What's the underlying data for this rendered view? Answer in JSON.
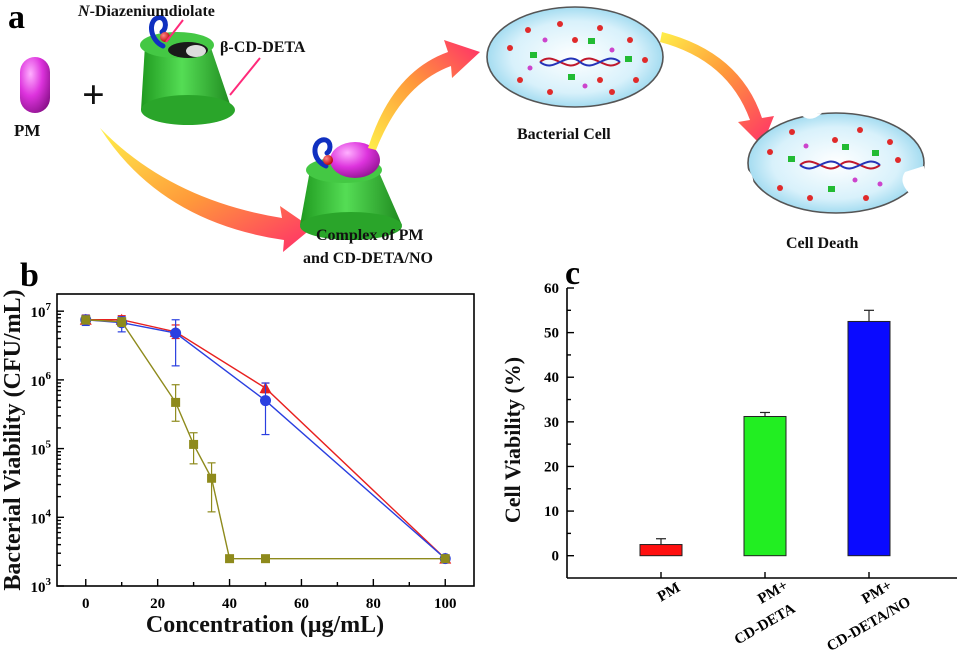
{
  "panel_a": {
    "panel_label": "a",
    "pm_label": "PM",
    "diazen_prefix": "N",
    "diazen_label": "-Diazeniumdiolate",
    "cd_label": "β-CD-DETA",
    "complex_line1": "Complex of PM",
    "complex_line2": "and CD-DETA/NO",
    "cell_label": "Bacterial Cell",
    "death_label": "Cell Death",
    "plus_sign": "+",
    "colors": {
      "pm": "#cc22cc",
      "cd": "#33bb33",
      "arrow": "#ff3355",
      "cell": "#bfe6f5"
    }
  },
  "chart_data": [
    {
      "panel_label": "b",
      "type": "line",
      "xlabel": "Concentration (μg/mL)",
      "ylabel": "Bacterial Viability (CFU/mL)",
      "xlim": [
        -8,
        108
      ],
      "ylim_log10": [
        3,
        7.25
      ],
      "y_scale": "log",
      "x_ticks": [
        0,
        20,
        40,
        60,
        80,
        100
      ],
      "y_tick_bases": [
        "10",
        "10",
        "10",
        "10",
        "10"
      ],
      "y_tick_exps": [
        "3",
        "4",
        "5",
        "6",
        "7"
      ],
      "y_tick_values": [
        1000,
        10000,
        100000,
        1000000,
        10000000
      ],
      "series": [
        {
          "marker": "triangle",
          "color": "#e8201f",
          "x": [
            0,
            10,
            25,
            50,
            100
          ],
          "y": [
            7500000,
            7500000,
            5000000,
            760000,
            2500
          ],
          "err_hi": [
            8800000,
            8600000,
            6300000,
            900000,
            2800
          ],
          "err_lo": [
            6500000,
            6300000,
            4000000,
            650000,
            2300
          ]
        },
        {
          "marker": "circle",
          "color": "#2a3fe0",
          "x": [
            0,
            10,
            25,
            50,
            100
          ],
          "y": [
            7500000,
            6800000,
            4800000,
            500000,
            2500
          ],
          "err_hi": [
            8700000,
            8300000,
            7500000,
            900000,
            2800
          ],
          "err_lo": [
            6200000,
            5000000,
            1600000,
            160000,
            2300
          ]
        },
        {
          "marker": "square",
          "color": "#8e8a1c",
          "x": [
            0,
            10,
            25,
            30,
            35,
            40,
            50,
            100
          ],
          "y": [
            7500000,
            7000000,
            470000,
            115000,
            37000,
            2500,
            2500,
            2500
          ],
          "err_hi": [
            8500000,
            8000000,
            850000,
            170000,
            62000,
            2500,
            2500,
            2500
          ],
          "err_lo": [
            6500000,
            6000000,
            250000,
            60000,
            12000,
            2500,
            2500,
            2500
          ]
        }
      ]
    },
    {
      "panel_label": "c",
      "type": "bar",
      "ylabel": "Cell Viability (%)",
      "ylim": [
        -5,
        60
      ],
      "y_ticks": [
        0,
        10,
        20,
        30,
        40,
        50,
        60
      ],
      "categories": [
        {
          "line1": "PM",
          "line2": ""
        },
        {
          "line1": "PM+",
          "line2": "CD-DETA"
        },
        {
          "line1": "PM+",
          "line2": "CD-DETA/NO"
        }
      ],
      "values": [
        2.5,
        31.2,
        52.5
      ],
      "errors": [
        1.3,
        0.9,
        2.5
      ],
      "colors": [
        "#ff1010",
        "#22ee22",
        "#0a0aff"
      ]
    }
  ]
}
